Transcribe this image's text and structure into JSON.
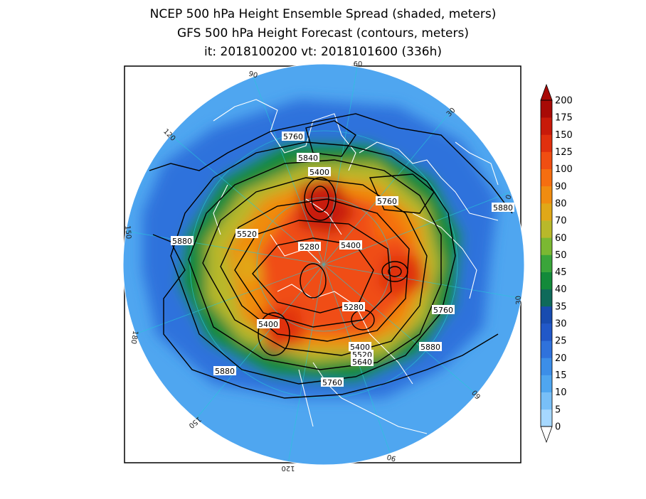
{
  "title": {
    "line1": "NCEP 500 hPa Height Ensemble Spread (shaded, meters)",
    "line2": "GFS 500 hPa Height Forecast (contours, meters)",
    "line3": "it: 2018100200      vt: 2018101600 (336h)"
  },
  "colorbar": {
    "levels": [
      0,
      5,
      10,
      15,
      20,
      25,
      30,
      35,
      40,
      45,
      50,
      60,
      70,
      80,
      90,
      100,
      125,
      150,
      175,
      200
    ],
    "colors": [
      "#a6d8ff",
      "#78bff7",
      "#4fa6f0",
      "#3c8ee8",
      "#2f72dc",
      "#2158c8",
      "#184cb0",
      "#0f6a5a",
      "#138a3a",
      "#3aa53a",
      "#7bb832",
      "#b8b82a",
      "#e0a818",
      "#f08c10",
      "#f56e10",
      "#f04e12",
      "#e0300e",
      "#c81a0a",
      "#a80a06"
    ]
  },
  "contour_labels": [
    "5760",
    "5840",
    "5400",
    "5760",
    "5880",
    "5520",
    "5880",
    "5280",
    "5400",
    "5760",
    "5280",
    "5400",
    "5400",
    "5520",
    "5640",
    "5880",
    "5880",
    "5760"
  ],
  "longitude_labels": [
    "60",
    "30",
    "0",
    "30",
    "60",
    "90",
    "120",
    "150",
    "180",
    "150",
    "120",
    "90"
  ]
}
